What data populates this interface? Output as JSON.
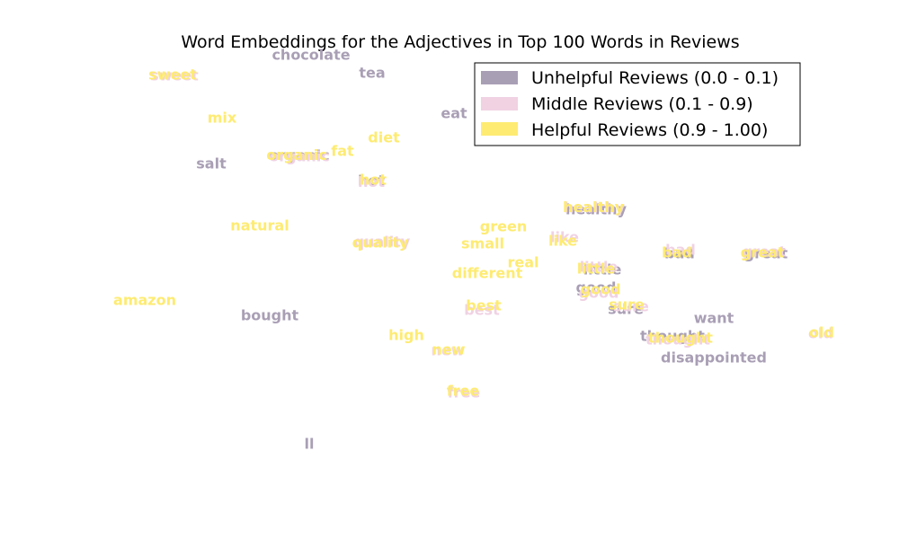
{
  "chart_data": {
    "type": "scatter",
    "title": "Word Embeddings for the Adjectives in Top 100 Words in Reviews",
    "axes_visible": false,
    "grid": false,
    "legend_position": "top-right",
    "x_range": [
      0,
      100
    ],
    "y_range": [
      0,
      100
    ],
    "series": [
      {
        "name": "Unhelpful Reviews (0.0 - 0.1)",
        "color": "#a99fb5",
        "points": [
          {
            "label": "chocolate",
            "x": 34.6,
            "y": 89.7
          },
          {
            "label": "tea",
            "x": 41.4,
            "y": 86.3
          },
          {
            "label": "eat",
            "x": 50.5,
            "y": 78.8
          },
          {
            "label": "salt",
            "x": 23.5,
            "y": 69.5
          },
          {
            "label": "organic",
            "x": 33.3,
            "y": 71.0
          },
          {
            "label": "hot",
            "x": 41.3,
            "y": 66.3
          },
          {
            "label": "healthy",
            "x": 66.3,
            "y": 61.0
          },
          {
            "label": "bad",
            "x": 75.6,
            "y": 52.8
          },
          {
            "label": "great",
            "x": 85.2,
            "y": 52.8
          },
          {
            "label": "little",
            "x": 67.0,
            "y": 49.8
          },
          {
            "label": "good",
            "x": 66.3,
            "y": 46.5
          },
          {
            "label": "sure",
            "x": 69.6,
            "y": 42.5
          },
          {
            "label": "bought",
            "x": 30.0,
            "y": 41.3
          },
          {
            "label": "want",
            "x": 79.4,
            "y": 40.8
          },
          {
            "label": "thought",
            "x": 74.8,
            "y": 37.5
          },
          {
            "label": "disappointed",
            "x": 79.4,
            "y": 33.5
          },
          {
            "label": "ll",
            "x": 34.4,
            "y": 17.5
          }
        ]
      },
      {
        "name": "Middle Reviews (0.1 - 0.9)",
        "color": "#f0d2e3",
        "points": [
          {
            "label": "sweet",
            "x": 19.4,
            "y": 85.8
          },
          {
            "label": "organic",
            "x": 33.3,
            "y": 70.8
          },
          {
            "label": "hot",
            "x": 41.3,
            "y": 66.1
          },
          {
            "label": "healthy",
            "x": 66.1,
            "y": 61.3
          },
          {
            "label": "quality",
            "x": 42.5,
            "y": 55.0
          },
          {
            "label": "like",
            "x": 62.8,
            "y": 55.8
          },
          {
            "label": "little",
            "x": 66.6,
            "y": 50.3
          },
          {
            "label": "bad",
            "x": 75.7,
            "y": 53.5
          },
          {
            "label": "great",
            "x": 85.0,
            "y": 53.2
          },
          {
            "label": "good",
            "x": 66.6,
            "y": 45.5
          },
          {
            "label": "sure",
            "x": 70.2,
            "y": 43.0
          },
          {
            "label": "best",
            "x": 53.6,
            "y": 42.3
          },
          {
            "label": "new",
            "x": 49.8,
            "y": 34.8
          },
          {
            "label": "thought",
            "x": 75.4,
            "y": 36.8
          },
          {
            "label": "old",
            "x": 91.3,
            "y": 38.0
          },
          {
            "label": "free",
            "x": 51.6,
            "y": 27.0
          }
        ]
      },
      {
        "name": "Helpful Reviews (0.9 - 1.00)",
        "color": "#feeb72",
        "points": [
          {
            "label": "sweet",
            "x": 19.2,
            "y": 86.0
          },
          {
            "label": "mix",
            "x": 24.7,
            "y": 78.0
          },
          {
            "label": "diet",
            "x": 42.7,
            "y": 74.3
          },
          {
            "label": "fat",
            "x": 38.1,
            "y": 71.8
          },
          {
            "label": "organic",
            "x": 33.0,
            "y": 71.1
          },
          {
            "label": "hot",
            "x": 41.5,
            "y": 66.5
          },
          {
            "label": "healthy",
            "x": 66.0,
            "y": 61.4
          },
          {
            "label": "natural",
            "x": 28.9,
            "y": 58.0
          },
          {
            "label": "green",
            "x": 56.0,
            "y": 57.8
          },
          {
            "label": "small",
            "x": 53.7,
            "y": 54.7
          },
          {
            "label": "quality",
            "x": 42.3,
            "y": 54.8
          },
          {
            "label": "like",
            "x": 62.6,
            "y": 55.2
          },
          {
            "label": "little",
            "x": 66.3,
            "y": 50.0
          },
          {
            "label": "bad",
            "x": 75.3,
            "y": 53.0
          },
          {
            "label": "great",
            "x": 84.8,
            "y": 53.0
          },
          {
            "label": "real",
            "x": 58.2,
            "y": 51.2
          },
          {
            "label": "different",
            "x": 54.2,
            "y": 49.2
          },
          {
            "label": "good",
            "x": 66.8,
            "y": 46.2
          },
          {
            "label": "sure",
            "x": 69.7,
            "y": 43.3
          },
          {
            "label": "amazon",
            "x": 16.1,
            "y": 44.2
          },
          {
            "label": "best",
            "x": 53.8,
            "y": 43.2
          },
          {
            "label": "high",
            "x": 45.2,
            "y": 37.7
          },
          {
            "label": "new",
            "x": 49.9,
            "y": 35.0
          },
          {
            "label": "thought",
            "x": 75.7,
            "y": 37.2
          },
          {
            "label": "old",
            "x": 91.4,
            "y": 38.2
          },
          {
            "label": "free",
            "x": 51.5,
            "y": 27.3
          }
        ]
      }
    ]
  }
}
